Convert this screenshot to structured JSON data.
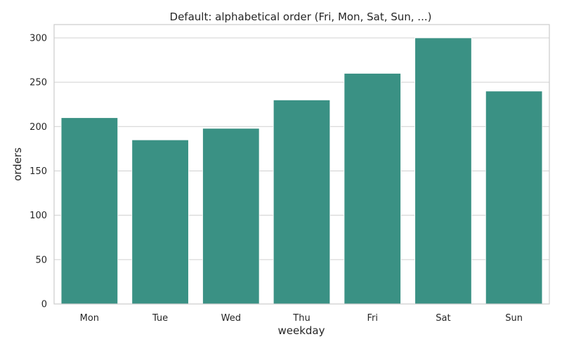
{
  "chart_data": {
    "type": "bar",
    "title": "Default: alphabetical order (Fri, Mon, Sat, Sun, ...)",
    "xlabel": "weekday",
    "ylabel": "orders",
    "categories": [
      "Mon",
      "Tue",
      "Wed",
      "Thu",
      "Fri",
      "Sat",
      "Sun"
    ],
    "values": [
      210,
      185,
      198,
      230,
      260,
      300,
      240
    ],
    "ylim": [
      0,
      315
    ],
    "yticks": [
      0,
      50,
      100,
      150,
      200,
      250,
      300
    ],
    "grid": "y",
    "bar_color": "#3a9184",
    "legend": "none"
  }
}
